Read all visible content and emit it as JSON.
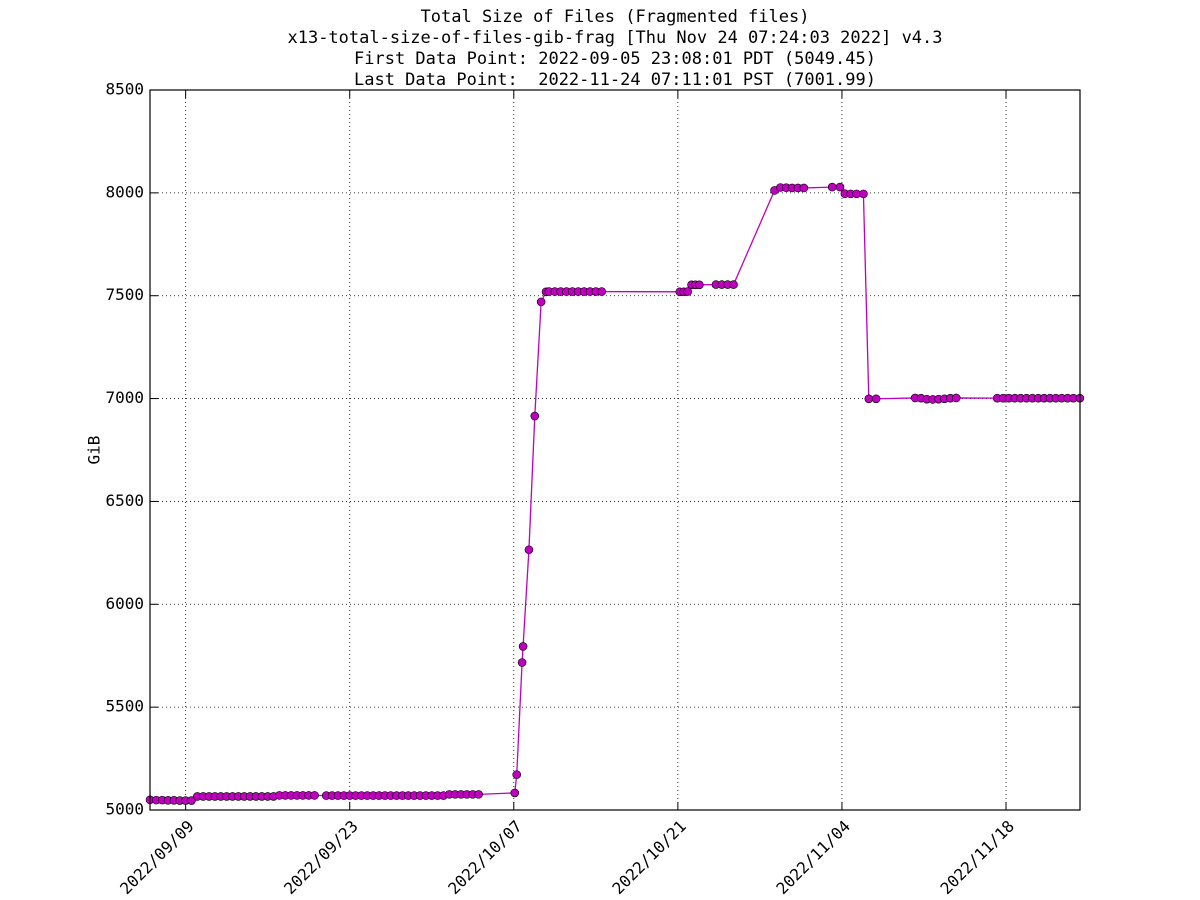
{
  "chart_data": {
    "type": "line",
    "title": "Total Size of Files (Fragmented files)",
    "subtitle": [
      "x13-total-size-of-files-gib-frag [Thu Nov 24 07:24:03 2022] v4.3",
      "First Data Point: 2022-09-05 23:08:01 PDT (5049.45)",
      "Last Data Point:  2022-11-24 07:11:01 PST (7001.99)"
    ],
    "y_label": "GiB",
    "color": "#bf00bf",
    "grid": true,
    "xlim": [
      "2022-09-05T23:00",
      "2022-11-24T07:30"
    ],
    "xticks": [
      {
        "value": "2022-09-09T00:00",
        "label": "2022/09/09"
      },
      {
        "value": "2022-09-23T00:00",
        "label": "2022/09/23"
      },
      {
        "value": "2022-10-07T00:00",
        "label": "2022/10/07"
      },
      {
        "value": "2022-10-21T00:00",
        "label": "2022/10/21"
      },
      {
        "value": "2022-11-04T00:00",
        "label": "2022/11/04"
      },
      {
        "value": "2022-11-18T00:00",
        "label": "2022/11/18"
      }
    ],
    "ylim": [
      5000,
      8500
    ],
    "yticks": [
      5000,
      5500,
      6000,
      6500,
      7000,
      7500,
      8000,
      8500
    ],
    "x": [
      "2022-09-05T23:08",
      "2022-09-06T12:00",
      "2022-09-07T00:00",
      "2022-09-07T12:00",
      "2022-09-08T00:00",
      "2022-09-08T12:00",
      "2022-09-09T00:00",
      "2022-09-09T12:00",
      "2022-09-10T00:00",
      "2022-09-10T12:00",
      "2022-09-11T00:00",
      "2022-09-11T12:00",
      "2022-09-12T00:00",
      "2022-09-12T12:00",
      "2022-09-13T00:00",
      "2022-09-13T12:00",
      "2022-09-14T00:00",
      "2022-09-14T12:00",
      "2022-09-15T00:00",
      "2022-09-15T12:00",
      "2022-09-16T00:00",
      "2022-09-16T12:00",
      "2022-09-17T00:00",
      "2022-09-17T12:00",
      "2022-09-18T00:00",
      "2022-09-18T12:00",
      "2022-09-19T00:00",
      "2022-09-19T12:00",
      "2022-09-20T00:00",
      "2022-09-21T00:00",
      "2022-09-21T12:00",
      "2022-09-22T00:00",
      "2022-09-22T12:00",
      "2022-09-23T00:00",
      "2022-09-23T12:00",
      "2022-09-24T00:00",
      "2022-09-24T12:00",
      "2022-09-25T00:00",
      "2022-09-25T12:00",
      "2022-09-26T00:00",
      "2022-09-26T12:00",
      "2022-09-27T00:00",
      "2022-09-27T12:00",
      "2022-09-28T00:00",
      "2022-09-28T12:00",
      "2022-09-29T00:00",
      "2022-09-29T12:00",
      "2022-09-30T00:00",
      "2022-09-30T12:00",
      "2022-10-01T00:00",
      "2022-10-01T12:00",
      "2022-10-02T00:00",
      "2022-10-02T12:00",
      "2022-10-03T00:00",
      "2022-10-03T12:00",
      "2022-10-04T00:00",
      "2022-10-07T02:00",
      "2022-10-07T06:00",
      "2022-10-07T17:00",
      "2022-10-07T19:00",
      "2022-10-08T07:00",
      "2022-10-08T19:00",
      "2022-10-09T08:00",
      "2022-10-09T18:00",
      "2022-10-10T00:00",
      "2022-10-10T12:00",
      "2022-10-11T00:00",
      "2022-10-11T12:00",
      "2022-10-12T00:00",
      "2022-10-12T12:00",
      "2022-10-13T00:00",
      "2022-10-13T12:00",
      "2022-10-14T00:00",
      "2022-10-14T12:00",
      "2022-10-21T04:00",
      "2022-10-21T12:00",
      "2022-10-21T20:00",
      "2022-10-22T04:00",
      "2022-10-22T12:00",
      "2022-10-22T20:00",
      "2022-10-24T06:00",
      "2022-10-24T18:00",
      "2022-10-25T06:00",
      "2022-10-25T18:00",
      "2022-10-29T06:00",
      "2022-10-29T18:00",
      "2022-10-30T06:00",
      "2022-10-30T18:00",
      "2022-10-31T06:00",
      "2022-10-31T18:00",
      "2022-11-03T04:00",
      "2022-11-03T20:00",
      "2022-11-04T06:00",
      "2022-11-04T18:00",
      "2022-11-05T06:00",
      "2022-11-05T20:00",
      "2022-11-06T07:00",
      "2022-11-06T22:00",
      "2022-11-10T06:00",
      "2022-11-10T18:00",
      "2022-11-11T06:00",
      "2022-11-11T18:00",
      "2022-11-12T06:00",
      "2022-11-12T18:00",
      "2022-11-13T06:00",
      "2022-11-13T18:00",
      "2022-11-17T06:00",
      "2022-11-17T18:00",
      "2022-11-18T06:00",
      "2022-11-18T18:00",
      "2022-11-19T06:00",
      "2022-11-19T18:00",
      "2022-11-20T06:00",
      "2022-11-20T18:00",
      "2022-11-21T06:00",
      "2022-11-21T18:00",
      "2022-11-22T06:00",
      "2022-11-22T18:00",
      "2022-11-23T06:00",
      "2022-11-23T18:00",
      "2022-11-24T07:11"
    ],
    "values": [
      5049.45,
      5048,
      5048,
      5047,
      5047,
      5046,
      5046,
      5046,
      5066,
      5066,
      5066,
      5066,
      5066,
      5066,
      5066,
      5066,
      5066,
      5066,
      5066,
      5066,
      5066,
      5066,
      5071,
      5071,
      5071,
      5071,
      5071,
      5071,
      5071,
      5070,
      5070,
      5070,
      5070,
      5070,
      5070,
      5070,
      5070,
      5070,
      5070,
      5070,
      5070,
      5070,
      5070,
      5070,
      5070,
      5070,
      5070,
      5070,
      5070,
      5070,
      5076,
      5076,
      5076,
      5076,
      5076,
      5076,
      5083,
      5172,
      5717,
      5795,
      6265,
      6915,
      7470,
      7519,
      7520,
      7520,
      7520,
      7520,
      7520,
      7520,
      7520,
      7520,
      7520,
      7520,
      7519,
      7519,
      7520,
      7553,
      7553,
      7553,
      7554,
      7554,
      7554,
      7554,
      8012,
      8026,
      8025,
      8024,
      8024,
      8024,
      8028,
      8028,
      7996,
      7995,
      7995,
      7995,
      6999,
      6999,
      7003,
      7002,
      6997,
      6996,
      6997,
      6999,
      7002,
      7003,
      7002,
      7002,
      7002,
      7002,
      7002,
      7002,
      7002,
      7002,
      7002,
      7002,
      7002,
      7002,
      7002,
      7002,
      7001.99
    ]
  }
}
